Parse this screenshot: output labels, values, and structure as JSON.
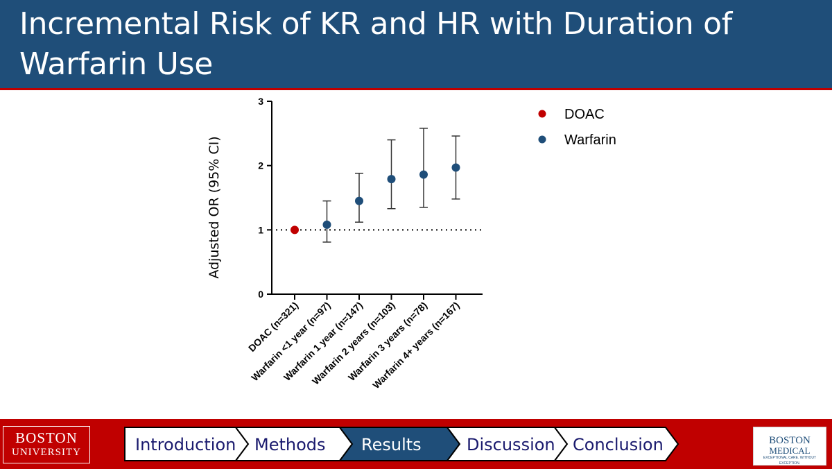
{
  "slide": {
    "title": "Incremental Risk of KR and HR with Duration of Warfarin Use"
  },
  "footer": {
    "left_logo": {
      "line1": "BOSTON",
      "line2": "UNIVERSITY"
    },
    "right_logo": {
      "line1": "BOSTON",
      "line2": "MEDICAL",
      "tagline": "EXCEPTIONAL CARE. WITHOUT EXCEPTION."
    },
    "nav": [
      {
        "label": "Introduction",
        "active": false
      },
      {
        "label": "Methods",
        "active": false
      },
      {
        "label": "Results",
        "active": true
      },
      {
        "label": "Discussion",
        "active": false
      },
      {
        "label": "Conclusion",
        "active": false
      }
    ]
  },
  "colors": {
    "header_bg": "#1f4e79",
    "accent_red": "#c00000",
    "doac": "#c00000",
    "warfarin": "#1f4e79",
    "nav_text": "#1a1a6e"
  },
  "chart_data": {
    "type": "scatter",
    "title": "",
    "xlabel": "",
    "ylabel": "Adjusted OR (95% CI)",
    "ylim": [
      0,
      3
    ],
    "yticks": [
      0,
      1,
      2,
      3
    ],
    "reference_line": 1,
    "grid": false,
    "legend_position": "top-right",
    "categories": [
      "DOAC (n=321)",
      "Warfarin <1 year (n=97)",
      "Warfarin 1 year (n=147)",
      "Warfarin 2 years (n=103)",
      "Warfarin 3 years (n=78)",
      "Warfarin 4+ years (n=167)"
    ],
    "series": [
      {
        "name": "DOAC",
        "color": "#c00000",
        "points": [
          {
            "category": "DOAC (n=321)",
            "value": 1.0
          }
        ]
      },
      {
        "name": "Warfarin",
        "color": "#1f4e79",
        "points": [
          {
            "category": "Warfarin <1 year (n=97)",
            "value": 1.08,
            "lower": 0.81,
            "upper": 1.45
          },
          {
            "category": "Warfarin 1 year (n=147)",
            "value": 1.45,
            "lower": 1.12,
            "upper": 1.88
          },
          {
            "category": "Warfarin 2 years (n=103)",
            "value": 1.79,
            "lower": 1.33,
            "upper": 2.4
          },
          {
            "category": "Warfarin 3 years (n=78)",
            "value": 1.86,
            "lower": 1.35,
            "upper": 2.58
          },
          {
            "category": "Warfarin 4+ years (n=167)",
            "value": 1.97,
            "lower": 1.48,
            "upper": 2.46
          }
        ]
      }
    ]
  }
}
